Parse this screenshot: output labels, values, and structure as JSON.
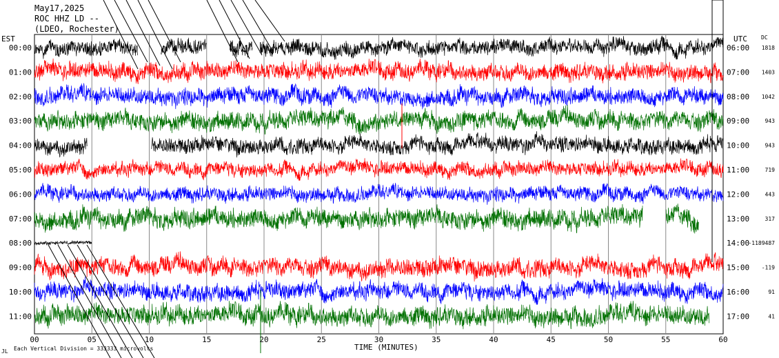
{
  "header": {
    "lines": [
      "May17,2025",
      "ROC HHZ LD --",
      "(LDEO, Rochester)"
    ]
  },
  "left_axis_title": "EST",
  "right_axis_title": "UTC",
  "dc_title": "DC",
  "x_axis_label": "TIME (MINUTES)",
  "footer_note": "Each Vertical Division = 333333 microvolts",
  "corner_mark": "JL",
  "chart_data": {
    "type": "line",
    "title": "",
    "xlabel": "TIME (MINUTES)",
    "xlim": [
      0,
      60
    ],
    "x_ticks": [
      "00",
      "05",
      "10",
      "15",
      "20",
      "25",
      "30",
      "35",
      "40",
      "45",
      "50",
      "55",
      "60"
    ],
    "grid": true,
    "row_colors": [
      "#000000",
      "#ff0000",
      "#0000ff",
      "#007000"
    ],
    "rows": [
      {
        "est": "00:00",
        "utc": "06:00",
        "dc": "1818",
        "color": "#000000",
        "amp": 12,
        "gaps": [
          [
            9.0,
            11.0
          ],
          [
            15.0,
            17.0
          ],
          [
            19.0,
            19.6
          ]
        ]
      },
      {
        "est": "01:00",
        "utc": "07:00",
        "dc": "1403",
        "color": "#ff0000",
        "amp": 13,
        "gaps": []
      },
      {
        "est": "02:00",
        "utc": "08:00",
        "dc": "1042",
        "color": "#0000ff",
        "amp": 13,
        "gaps": []
      },
      {
        "est": "03:00",
        "utc": "09:00",
        "dc": "943",
        "color": "#007000",
        "amp": 14,
        "gaps": []
      },
      {
        "est": "04:00",
        "utc": "10:00",
        "dc": "943",
        "color": "#000000",
        "amp": 12,
        "gaps": [
          [
            4.6,
            10.2
          ]
        ]
      },
      {
        "est": "05:00",
        "utc": "11:00",
        "dc": "719",
        "color": "#ff0000",
        "amp": 11,
        "gaps": []
      },
      {
        "est": "06:00",
        "utc": "12:00",
        "dc": "443",
        "color": "#0000ff",
        "amp": 11,
        "gaps": []
      },
      {
        "est": "07:00",
        "utc": "13:00",
        "dc": "317",
        "color": "#007000",
        "amp": 15,
        "gaps": [
          [
            53.0,
            55.0
          ],
          [
            57.9,
            60.0
          ]
        ]
      },
      {
        "est": "08:00",
        "utc": "14:00",
        "dc": "-1189487",
        "color": "#000000",
        "amp": 3,
        "gaps": [
          [
            5.0,
            60.0
          ]
        ]
      },
      {
        "est": "09:00",
        "utc": "15:00",
        "dc": "-119",
        "color": "#ff0000",
        "amp": 14,
        "gaps": []
      },
      {
        "est": "10:00",
        "utc": "16:00",
        "dc": "91",
        "color": "#0000ff",
        "amp": 13,
        "gaps": []
      },
      {
        "est": "11:00",
        "utc": "17:00",
        "dc": "41",
        "color": "#007000",
        "amp": 15,
        "gaps": [
          [
            58.8,
            60.0
          ]
        ]
      }
    ]
  }
}
